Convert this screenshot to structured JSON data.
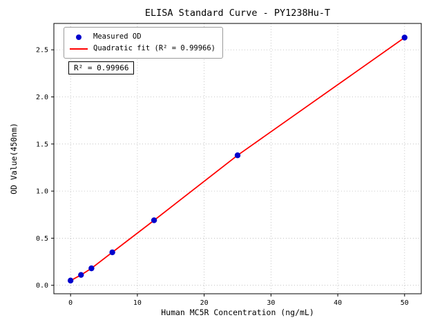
{
  "chart_data": {
    "type": "scatter",
    "title": "ELISA Standard Curve - PY1238Hu-T",
    "xlabel": "Human MC5R Concentration (ng/mL)",
    "ylabel": "OD Value(450nm)",
    "xlim": [
      -2.5,
      52.5
    ],
    "ylim": [
      -0.09,
      2.78
    ],
    "xticks": [
      0,
      10,
      20,
      30,
      40,
      50
    ],
    "xtick_labels": [
      "0",
      "10",
      "20",
      "30",
      "40",
      "50"
    ],
    "yticks": [
      0.0,
      0.5,
      1.0,
      1.5,
      2.0,
      2.5
    ],
    "ytick_labels": [
      "0.0",
      "0.5",
      "1.0",
      "1.5",
      "2.0",
      "2.5"
    ],
    "grid": true,
    "grid_color": "#b8b8b8",
    "annotation": "R² = 0.99966",
    "legend": {
      "position": "upper-left",
      "entries": [
        {
          "type": "marker",
          "color": "#0000cd",
          "label": "Measured OD"
        },
        {
          "type": "line",
          "color": "#ff0000",
          "label": "Quadratic fit (R² = 0.99966)"
        }
      ]
    },
    "series": [
      {
        "name": "Measured OD",
        "type": "scatter",
        "color": "#0000cd",
        "x": [
          0,
          1.5625,
          3.125,
          6.25,
          12.5,
          25,
          50
        ],
        "y": [
          0.05,
          0.11,
          0.18,
          0.35,
          0.69,
          1.38,
          2.63
        ]
      },
      {
        "name": "Quadratic fit",
        "type": "line",
        "color": "#ff0000",
        "x": [
          0,
          1.5625,
          3.125,
          6.25,
          12.5,
          25,
          50
        ],
        "y": [
          0.05,
          0.11,
          0.18,
          0.35,
          0.69,
          1.38,
          2.63
        ]
      }
    ]
  }
}
